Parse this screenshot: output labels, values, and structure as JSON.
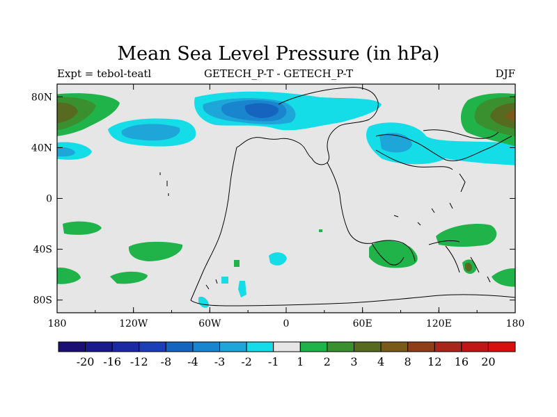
{
  "title": "Mean Sea Level Pressure (in hPa)",
  "subtitle_left": "Expt = tebol-teatl",
  "subtitle_center": "GETECH_P-T - GETECH_P-T",
  "subtitle_right": "DJF",
  "axes": {
    "x_ticks": [
      "180",
      "120W",
      "60W",
      "0",
      "60E",
      "120E",
      "180"
    ],
    "y_ticks": [
      "80N",
      "40N",
      "0",
      "40S",
      "80S"
    ],
    "lon_range": [
      -180,
      180
    ],
    "lat_range": [
      -90,
      90
    ]
  },
  "colorbar": {
    "labels": [
      "-20",
      "-16",
      "-12",
      "-8",
      "-4",
      "-3",
      "-2",
      "-1",
      "1",
      "2",
      "3",
      "4",
      "8",
      "12",
      "16",
      "20"
    ],
    "colors": [
      "#1c0f73",
      "#1a1a8c",
      "#1b2aa3",
      "#1c3fb8",
      "#1565bf",
      "#1a85cf",
      "#1fa6d9",
      "#14dde8",
      "#e6e6e6",
      "#1fb34a",
      "#3a8f2e",
      "#566b1f",
      "#7a5a1a",
      "#8f3f17",
      "#a8271a",
      "#c01616",
      "#d90f0f"
    ]
  },
  "colors": {
    "background": "#e6e6e6",
    "cyan": "#14dde8",
    "light_blue": "#1fa6d9",
    "mid_blue": "#1a85cf",
    "dark_blue": "#1565bf",
    "green": "#1fb34a",
    "dark_green": "#3a8f2e",
    "olive": "#566b1f",
    "brown": "#7a5a1a"
  }
}
